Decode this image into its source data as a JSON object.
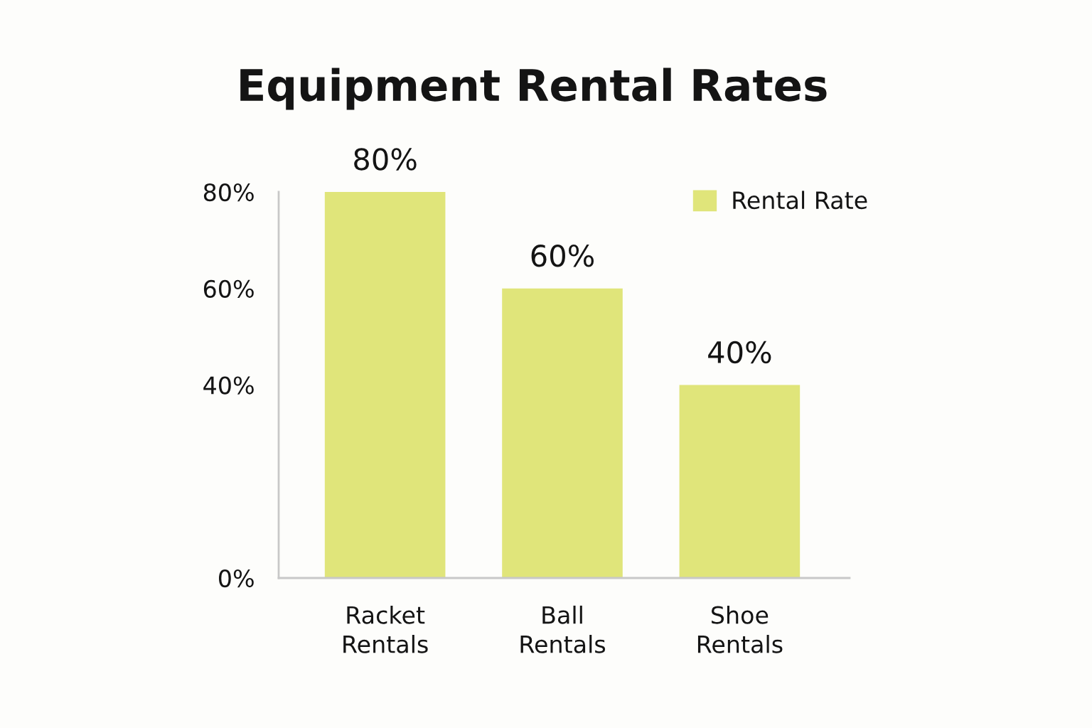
{
  "chart_data": {
    "type": "bar",
    "title": "Equipment Rental Rates",
    "categories": [
      "Racket Rentals",
      "Ball Rentals",
      "Shoe Rentals"
    ],
    "series": [
      {
        "name": "Rental Rate",
        "color": "#e0e57a",
        "values": [
          80,
          60,
          40
        ],
        "value_labels": [
          "80%",
          "60%",
          "40%"
        ]
      }
    ],
    "ylim": [
      0,
      80
    ],
    "yticks": [
      {
        "value": 0,
        "label": "0%"
      },
      {
        "value": 40,
        "label": "40%"
      },
      {
        "value": 60,
        "label": "60%"
      },
      {
        "value": 80,
        "label": "80%"
      }
    ],
    "legend": "top right"
  }
}
